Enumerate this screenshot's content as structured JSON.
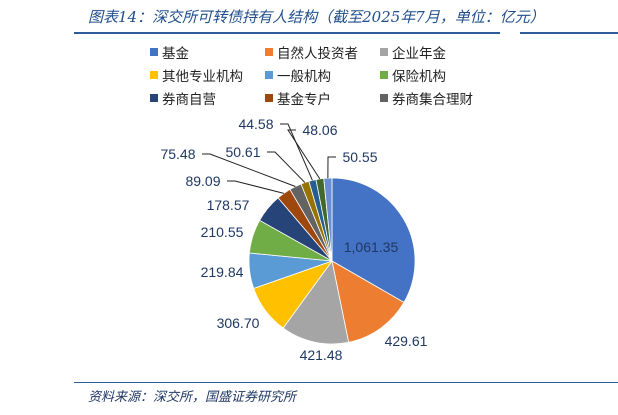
{
  "title": "图表14：深交所可转债持有人结构（截至2025年7月，单位：亿元）",
  "source": "资料来源：深交所，国盛证券研究所",
  "chart_data": {
    "type": "pie",
    "unit": "亿元",
    "legend_position": "top",
    "start": "12 o'clock, clockwise",
    "slices": [
      {
        "name": "基金",
        "value": 1061.35,
        "label": "1,061.35",
        "color": "#4472C4"
      },
      {
        "name": "自然人投资者",
        "value": 429.61,
        "label": "429.61",
        "color": "#ED7D31"
      },
      {
        "name": "企业年金",
        "value": 421.48,
        "label": "421.48",
        "color": "#A5A5A5"
      },
      {
        "name": "其他专业机构",
        "value": 306.7,
        "label": "306.70",
        "color": "#FFC000"
      },
      {
        "name": "一般机构",
        "value": 219.84,
        "label": "219.84",
        "color": "#5B9BD5"
      },
      {
        "name": "保险机构",
        "value": 210.55,
        "label": "210.55",
        "color": "#70AD47"
      },
      {
        "name": "券商自营",
        "value": 178.57,
        "label": "178.57",
        "color": "#264478"
      },
      {
        "name": "基金专户",
        "value": 89.09,
        "label": "89.09",
        "color": "#9E480E"
      },
      {
        "name": "券商集合理财",
        "value": 75.48,
        "label": "75.48",
        "color": "#636363"
      },
      {
        "value": 50.61,
        "label": "50.61",
        "color": "#997300"
      },
      {
        "value": 44.58,
        "label": "44.58",
        "color": "#255E91"
      },
      {
        "value": 48.06,
        "label": "48.06",
        "color": "#43682B"
      },
      {
        "value": 50.55,
        "label": "50.55",
        "color": "#698ED0"
      }
    ]
  }
}
